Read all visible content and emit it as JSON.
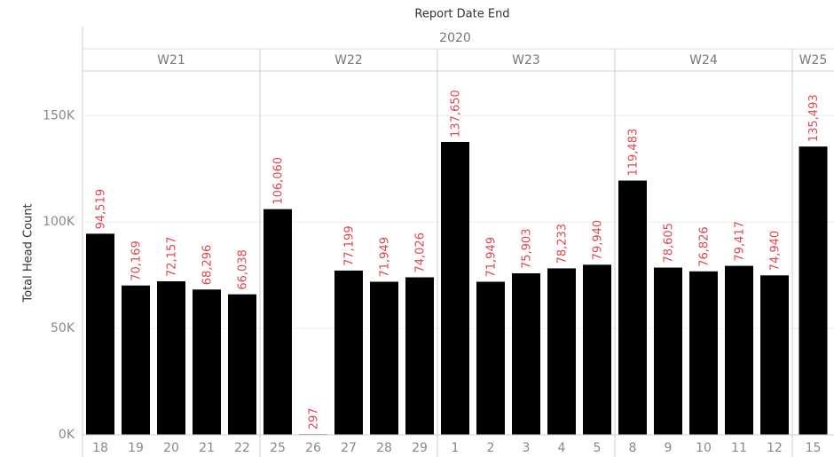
{
  "chart_data": {
    "type": "bar",
    "x_title": "Report Date End",
    "year": "2020",
    "y_title": "Total Head Count",
    "color": "#000000",
    "label_color": "#e0464e",
    "grid": true,
    "ylim": [
      0,
      171000
    ],
    "yticks": [
      {
        "value": 0,
        "label": "0K"
      },
      {
        "value": 50000,
        "label": "50K"
      },
      {
        "value": 100000,
        "label": "100K"
      },
      {
        "value": 150000,
        "label": "150K"
      }
    ],
    "weeks": [
      {
        "name": "W21",
        "categories": [
          "18",
          "19",
          "20",
          "21",
          "22"
        ],
        "values": [
          94519,
          70169,
          72157,
          68296,
          66038
        ],
        "value_labels": [
          "94,519",
          "70,169",
          "72,157",
          "68,296",
          "66,038"
        ]
      },
      {
        "name": "W22",
        "categories": [
          "25",
          "26",
          "27",
          "28",
          "29"
        ],
        "values": [
          106060,
          297,
          77199,
          71949,
          74026
        ],
        "value_labels": [
          "106,060",
          "297",
          "77,199",
          "71,949",
          "74,026"
        ]
      },
      {
        "name": "W23",
        "categories": [
          "1",
          "2",
          "3",
          "4",
          "5"
        ],
        "values": [
          137650,
          71949,
          75903,
          78233,
          79940
        ],
        "value_labels": [
          "137,650",
          "71,949",
          "75,903",
          "78,233",
          "79,940"
        ]
      },
      {
        "name": "W24",
        "categories": [
          "8",
          "9",
          "10",
          "11",
          "12"
        ],
        "values": [
          119483,
          78605,
          76826,
          79417,
          74940
        ],
        "value_labels": [
          "119,483",
          "78,605",
          "76,826",
          "79,417",
          "74,940"
        ]
      },
      {
        "name": "W25",
        "categories": [
          "15"
        ],
        "values": [
          135493
        ],
        "value_labels": [
          "135,493"
        ]
      }
    ]
  }
}
